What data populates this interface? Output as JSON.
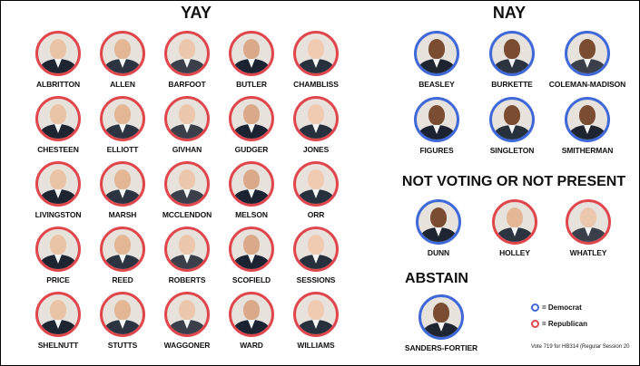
{
  "headings": {
    "yay": "YAY",
    "nay": "NAY",
    "not_voting": "NOT VOTING OR NOT PRESENT",
    "abstain": "ABSTAIN"
  },
  "colors": {
    "democrat": "#3f68d8",
    "republican": "#e0474c"
  },
  "yay": [
    {
      "name": "ALBRITTON",
      "party": "R"
    },
    {
      "name": "ALLEN",
      "party": "R"
    },
    {
      "name": "BARFOOT",
      "party": "R"
    },
    {
      "name": "BUTLER",
      "party": "R"
    },
    {
      "name": "CHAMBLISS",
      "party": "R"
    },
    {
      "name": "CHESTEEN",
      "party": "R"
    },
    {
      "name": "ELLIOTT",
      "party": "R"
    },
    {
      "name": "GIVHAN",
      "party": "R"
    },
    {
      "name": "GUDGER",
      "party": "R"
    },
    {
      "name": "JONES",
      "party": "R"
    },
    {
      "name": "LIVINGSTON",
      "party": "R"
    },
    {
      "name": "MARSH",
      "party": "R"
    },
    {
      "name": "MCCLENDON",
      "party": "R"
    },
    {
      "name": "MELSON",
      "party": "R"
    },
    {
      "name": "ORR",
      "party": "R"
    },
    {
      "name": "PRICE",
      "party": "R"
    },
    {
      "name": "REED",
      "party": "R"
    },
    {
      "name": "ROBERTS",
      "party": "R"
    },
    {
      "name": "SCOFIELD",
      "party": "R"
    },
    {
      "name": "SESSIONS",
      "party": "R"
    },
    {
      "name": "SHELNUTT",
      "party": "R"
    },
    {
      "name": "STUTTS",
      "party": "R"
    },
    {
      "name": "WAGGONER",
      "party": "R"
    },
    {
      "name": "WARD",
      "party": "R"
    },
    {
      "name": "WILLIAMS",
      "party": "R"
    }
  ],
  "nay": [
    {
      "name": "BEASLEY",
      "party": "D"
    },
    {
      "name": "BURKETTE",
      "party": "D"
    },
    {
      "name": "COLEMAN-MADISON",
      "party": "D"
    },
    {
      "name": "FIGURES",
      "party": "D"
    },
    {
      "name": "SINGLETON",
      "party": "D"
    },
    {
      "name": "SMITHERMAN",
      "party": "D"
    }
  ],
  "not_voting": [
    {
      "name": "DUNN",
      "party": "D"
    },
    {
      "name": "HOLLEY",
      "party": "R"
    },
    {
      "name": "WHATLEY",
      "party": "R"
    }
  ],
  "abstain": [
    {
      "name": "SANDERS-FORTIER",
      "party": "D"
    }
  ],
  "legend": {
    "democrat": "= Democrat",
    "republican": "= Republican"
  },
  "footnote": "Vote 719 for HB314 (Regular Session 20"
}
